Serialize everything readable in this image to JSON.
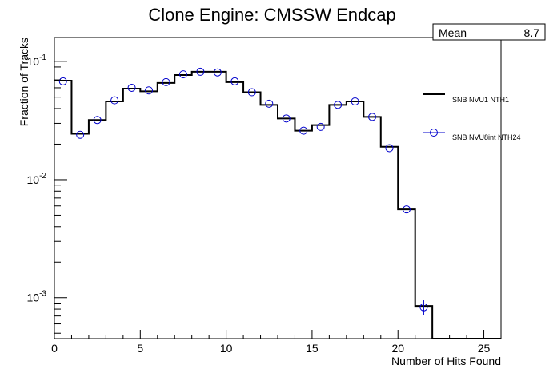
{
  "chart_data": {
    "type": "line",
    "title": "Clone Engine: CMSSW Endcap",
    "xlabel": "Number of Hits Found",
    "ylabel": "Fraction of Tracks",
    "xlim": [
      0,
      26
    ],
    "ylim": [
      0.00045,
      0.16
    ],
    "y_scale": "log",
    "x_ticks": [
      0,
      5,
      10,
      15,
      20,
      25
    ],
    "y_ticks": [
      {
        "value": 0.001,
        "base": "10",
        "exp": "-3"
      },
      {
        "value": 0.01,
        "base": "10",
        "exp": "-2"
      },
      {
        "value": 0.1,
        "base": "10",
        "exp": "-1"
      }
    ],
    "bin_edges": [
      0,
      1,
      2,
      3,
      4,
      5,
      6,
      7,
      8,
      9,
      10,
      11,
      12,
      13,
      14,
      15,
      16,
      17,
      18,
      19,
      20,
      21,
      22,
      23,
      24,
      25,
      26
    ],
    "series": [
      {
        "name": "SNB NVU1 NTH1",
        "style": "histogram",
        "color": "#000000",
        "values": [
          0.069,
          0.0245,
          0.032,
          0.046,
          0.059,
          0.056,
          0.066,
          0.077,
          0.082,
          0.082,
          0.067,
          0.055,
          0.043,
          0.033,
          0.026,
          0.029,
          0.043,
          0.046,
          0.034,
          0.019,
          0.0056,
          0.00085,
          0.0004,
          0.0004,
          0.0004,
          0.0004
        ]
      },
      {
        "name": "SNB NVU8int NTH24",
        "style": "markers",
        "color": "#0000cc",
        "x": [
          0.5,
          1.5,
          2.5,
          3.5,
          4.5,
          5.5,
          6.5,
          7.5,
          8.5,
          9.5,
          10.5,
          11.5,
          12.5,
          13.5,
          14.5,
          15.5,
          16.5,
          17.5,
          18.5,
          19.5,
          20.5,
          21.5
        ],
        "values": [
          0.068,
          0.024,
          0.032,
          0.047,
          0.06,
          0.057,
          0.067,
          0.078,
          0.082,
          0.081,
          0.068,
          0.055,
          0.044,
          0.033,
          0.026,
          0.028,
          0.043,
          0.046,
          0.034,
          0.0185,
          0.0056,
          0.00083
        ],
        "errors": [
          0,
          0,
          0,
          0,
          0,
          0,
          0,
          0,
          0,
          0,
          0,
          0,
          0,
          0,
          0,
          0,
          0,
          0,
          0,
          0,
          0,
          0.00012
        ]
      }
    ],
    "legend": {
      "placement": "right"
    },
    "stats": {
      "label": "Mean",
      "value": "8.7"
    },
    "grid": false
  }
}
